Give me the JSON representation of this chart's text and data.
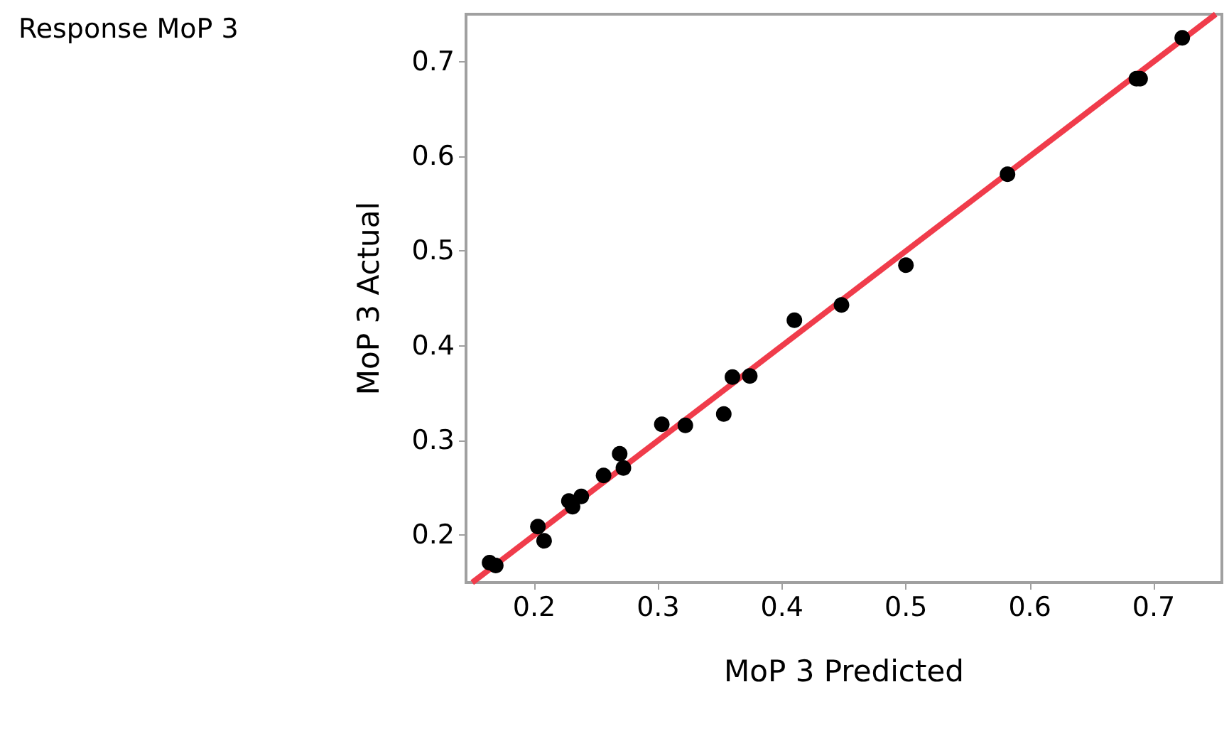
{
  "chart_data": {
    "type": "scatter",
    "title": "Response MoP 3",
    "xlabel": "MoP 3 Predicted",
    "ylabel": "MoP 3 Actual",
    "xlim": [
      0.145,
      0.755
    ],
    "ylim": [
      0.15,
      0.75
    ],
    "xticks": [
      0.2,
      0.3,
      0.4,
      0.5,
      0.6,
      0.7
    ],
    "yticks": [
      0.2,
      0.3,
      0.4,
      0.5,
      0.6,
      0.7
    ],
    "grid": false,
    "series": [
      {
        "marker": "circle",
        "color": "#000000",
        "x": [
          0.164,
          0.169,
          0.203,
          0.208,
          0.228,
          0.231,
          0.238,
          0.256,
          0.269,
          0.272,
          0.303,
          0.322,
          0.353,
          0.36,
          0.374,
          0.41,
          0.448,
          0.5,
          0.582,
          0.686,
          0.689,
          0.723
        ],
        "values": [
          0.171,
          0.168,
          0.209,
          0.194,
          0.236,
          0.23,
          0.241,
          0.263,
          0.286,
          0.271,
          0.317,
          0.316,
          0.328,
          0.367,
          0.368,
          0.427,
          0.443,
          0.485,
          0.581,
          0.682,
          0.682,
          0.725
        ]
      },
      {
        "type": "line",
        "color": "#f03c4b",
        "line_style": "solid",
        "x": [
          0.15,
          0.75
        ],
        "values": [
          0.15,
          0.75
        ]
      }
    ]
  }
}
